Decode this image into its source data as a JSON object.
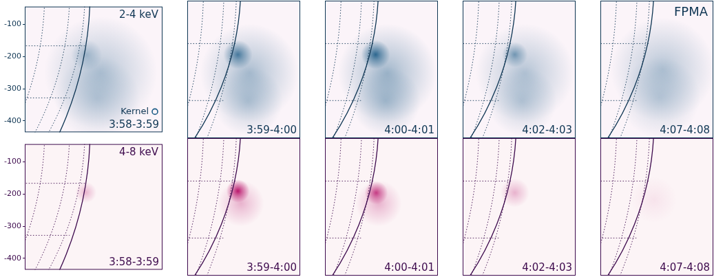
{
  "chart_data": {
    "type": "image",
    "title": "FPMA",
    "xlim": [
      775,
      1165
    ],
    "ylim": [
      -435,
      -45
    ],
    "yticks": [
      -100,
      -200,
      -300,
      -400
    ],
    "tick_labels": "y",
    "solar_radius": 960,
    "heliographic_grid_deg": 10,
    "legend_label": "Kernel",
    "marker": "circle",
    "rows": [
      {
        "label": "2-4 keV",
        "color": "#1b5b86",
        "text_color": "#0e3553",
        "background": "#fbf4f9",
        "panels": [
          {
            "time": "3:58-3:59",
            "sources": [
              {
                "x": 990,
                "y": -250,
                "size": 80,
                "brightness": 0.35
              },
              {
                "x": 980,
                "y": -330,
                "size": 60,
                "brightness": 0.25
              },
              {
                "x": 950,
                "y": -195,
                "size": 22,
                "brightness": 0.35
              }
            ]
          },
          {
            "time": "3:59-4:00",
            "sources": [
              {
                "x": 990,
                "y": -250,
                "size": 85,
                "brightness": 0.4
              },
              {
                "x": 985,
                "y": -330,
                "size": 60,
                "brightness": 0.3
              },
              {
                "x": 950,
                "y": -198,
                "size": 25,
                "brightness": 0.85
              }
            ]
          },
          {
            "time": "4:00-4:01",
            "sources": [
              {
                "x": 990,
                "y": -250,
                "size": 85,
                "brightness": 0.45
              },
              {
                "x": 985,
                "y": -330,
                "size": 60,
                "brightness": 0.35
              },
              {
                "x": 950,
                "y": -198,
                "size": 25,
                "brightness": 1.0
              }
            ]
          },
          {
            "time": "4:02-4:03",
            "sources": [
              {
                "x": 990,
                "y": -250,
                "size": 85,
                "brightness": 0.35
              },
              {
                "x": 980,
                "y": -330,
                "size": 60,
                "brightness": 0.28
              },
              {
                "x": 955,
                "y": -198,
                "size": 22,
                "brightness": 0.6
              }
            ]
          },
          {
            "time": "4:07-4:08",
            "sources": [
              {
                "x": 990,
                "y": -240,
                "size": 90,
                "brightness": 0.35
              },
              {
                "x": 980,
                "y": -320,
                "size": 70,
                "brightness": 0.25
              }
            ]
          }
        ]
      },
      {
        "label": "4-8 keV",
        "color": "#b3005f",
        "text_color": "#3d0a4d",
        "background": "#fcf4f6",
        "panels": [
          {
            "time": "3:58-3:59",
            "sources": [
              {
                "x": 948,
                "y": -195,
                "size": 15,
                "brightness": 0.3
              }
            ]
          },
          {
            "time": "3:59-4:00",
            "sources": [
              {
                "x": 950,
                "y": -195,
                "size": 20,
                "brightness": 1.0
              },
              {
                "x": 960,
                "y": -230,
                "size": 40,
                "brightness": 0.3
              }
            ]
          },
          {
            "time": "4:00-4:01",
            "sources": [
              {
                "x": 952,
                "y": -200,
                "size": 20,
                "brightness": 0.8
              },
              {
                "x": 960,
                "y": -230,
                "size": 40,
                "brightness": 0.3
              }
            ]
          },
          {
            "time": "4:02-4:03",
            "sources": [
              {
                "x": 955,
                "y": -200,
                "size": 25,
                "brightness": 0.3
              }
            ]
          },
          {
            "time": "4:07-4:08",
            "sources": [
              {
                "x": 960,
                "y": -220,
                "size": 40,
                "brightness": 0.08
              }
            ]
          }
        ]
      }
    ]
  }
}
